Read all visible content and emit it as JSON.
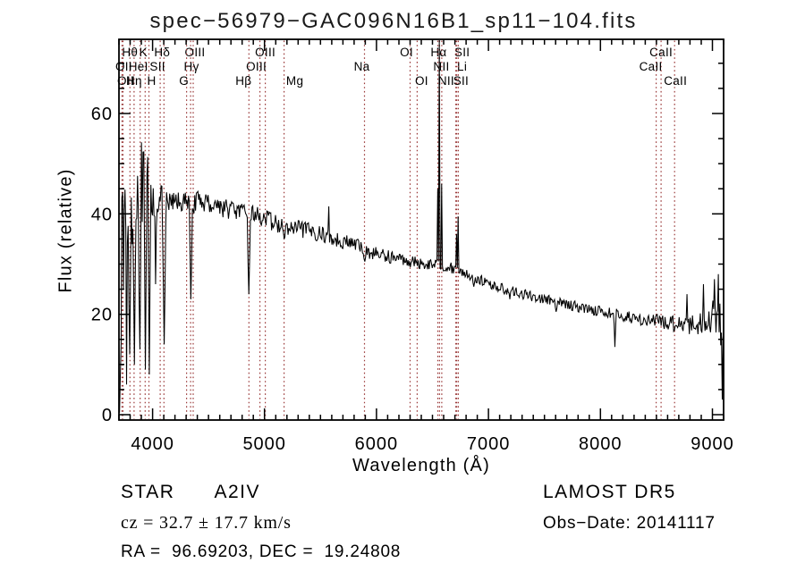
{
  "title": "spec−56979−GAC096N16B1_sp11−104.fits",
  "colors": {
    "marker_line": "#9b3a3a",
    "trace": "#000000",
    "axis": "#000000"
  },
  "annotations": {
    "object_class": "STAR",
    "subclass": "A2IV",
    "cz": "cz = 32.7 ± 17.7 km/s",
    "ra_dec": "RA =  96.69203, DEC =  19.24808",
    "survey": "LAMOST DR5",
    "obs_date": "Obs−Date: 20141117"
  },
  "chart_data": {
    "type": "line",
    "title": "spec−56979−GAC096N16B1_sp11−104.fits",
    "xlabel": "Wavelength (Å)",
    "ylabel": "Flux (relative)",
    "xlim": [
      3700,
      9100
    ],
    "ylim": [
      0,
      75
    ],
    "grid": false,
    "xticks_major": [
      4000,
      5000,
      6000,
      7000,
      8000,
      9000
    ],
    "xtick_minor_step": 100,
    "yticks_major": [
      0,
      20,
      40,
      60
    ],
    "ytick_minor_step": 5,
    "line_markers": [
      {
        "label": "Hθ",
        "wavelength": 3798,
        "row": 1,
        "dx": 0
      },
      {
        "label": "K",
        "wavelength": 3934,
        "row": 1,
        "dx": -2
      },
      {
        "label": "Hδ",
        "wavelength": 4102,
        "row": 1,
        "dx": -2
      },
      {
        "label": "OIII",
        "wavelength": 4363,
        "row": 1,
        "dx": 2
      },
      {
        "label": "OIII",
        "wavelength": 5007,
        "row": 1,
        "dx": 0
      },
      {
        "label": "OI",
        "wavelength": 6300,
        "row": 1,
        "dx": -4
      },
      {
        "label": "Hα",
        "wavelength": 6563,
        "row": 1,
        "dx": -1
      },
      {
        "label": "SII",
        "wavelength": 6716,
        "row": 1,
        "dx": 6
      },
      {
        "label": "CaII",
        "wavelength": 8542,
        "row": 1,
        "dx": 0
      },
      {
        "label": "OII",
        "wavelength": 3727,
        "row": 2,
        "dx": 2
      },
      {
        "label": "HeI",
        "wavelength": 3889,
        "row": 2,
        "dx": -2
      },
      {
        "label": "SII",
        "wavelength": 4068,
        "row": 2,
        "dx": -3
      },
      {
        "label": "Hγ",
        "wavelength": 4340,
        "row": 2,
        "dx": 1
      },
      {
        "label": "OIII",
        "wavelength": 4959,
        "row": 2,
        "dx": -4
      },
      {
        "label": "Na",
        "wavelength": 5893,
        "row": 2,
        "dx": -3
      },
      {
        "label": "NII",
        "wavelength": 6548,
        "row": 2,
        "dx": 4
      },
      {
        "label": "Li",
        "wavelength": 6708,
        "row": 2,
        "dx": 7
      },
      {
        "label": "CaII",
        "wavelength": 8498,
        "row": 2,
        "dx": -6
      },
      {
        "label": "OII",
        "wavelength": 3736,
        "row": 3,
        "dx": 3
      },
      {
        "label": "Hη",
        "wavelength": 3835,
        "row": 3,
        "dx": 0
      },
      {
        "label": "H",
        "wavelength": 3968,
        "row": 3,
        "dx": 3
      },
      {
        "label": "G",
        "wavelength": 4304,
        "row": 3,
        "dx": -3
      },
      {
        "label": "Hβ",
        "wavelength": 4861,
        "row": 3,
        "dx": -6
      },
      {
        "label": "Mg",
        "wavelength": 5175,
        "row": 3,
        "dx": 12
      },
      {
        "label": "OI",
        "wavelength": 6363,
        "row": 3,
        "dx": 5
      },
      {
        "label": "NII",
        "wavelength": 6583,
        "row": 3,
        "dx": 5
      },
      {
        "label": "SII",
        "wavelength": 6731,
        "row": 3,
        "dx": 3
      },
      {
        "label": "CaII",
        "wavelength": 8662,
        "row": 3,
        "dx": 1
      }
    ],
    "spectrum": {
      "sample_step": 7,
      "noise_seed": 1234,
      "continuum": [
        [
          3705,
          0
        ],
        [
          3708,
          14
        ],
        [
          3715,
          24
        ],
        [
          3725,
          30
        ],
        [
          3740,
          34
        ],
        [
          3755,
          44
        ],
        [
          3770,
          40
        ],
        [
          3790,
          42
        ],
        [
          3810,
          44
        ],
        [
          3830,
          45
        ],
        [
          3850,
          45
        ],
        [
          3870,
          46
        ],
        [
          3890,
          46
        ],
        [
          3910,
          45
        ],
        [
          3930,
          45
        ],
        [
          3950,
          44
        ],
        [
          3970,
          44
        ],
        [
          3990,
          44
        ],
        [
          4020,
          44
        ],
        [
          4060,
          43
        ],
        [
          4110,
          42
        ],
        [
          4160,
          42
        ],
        [
          4210,
          42.5
        ],
        [
          4260,
          42.5
        ],
        [
          4310,
          42
        ],
        [
          4360,
          42
        ],
        [
          4410,
          42.5
        ],
        [
          4460,
          42.5
        ],
        [
          4510,
          42
        ],
        [
          4560,
          42
        ],
        [
          4610,
          41.5
        ],
        [
          4660,
          41
        ],
        [
          4710,
          41
        ],
        [
          4760,
          40.5
        ],
        [
          4810,
          40
        ],
        [
          4860,
          40
        ],
        [
          4910,
          40
        ],
        [
          4960,
          39.5
        ],
        [
          5010,
          39
        ],
        [
          5060,
          38.5
        ],
        [
          5110,
          38
        ],
        [
          5160,
          37.5
        ],
        [
          5210,
          37
        ],
        [
          5310,
          37
        ],
        [
          5410,
          36.5
        ],
        [
          5510,
          36
        ],
        [
          5610,
          35
        ],
        [
          5710,
          34.5
        ],
        [
          5810,
          34
        ],
        [
          5910,
          32.5
        ],
        [
          6010,
          32
        ],
        [
          6110,
          31.5
        ],
        [
          6210,
          31
        ],
        [
          6310,
          30.5
        ],
        [
          6410,
          30
        ],
        [
          6510,
          30
        ],
        [
          6610,
          29.5
        ],
        [
          6710,
          29
        ],
        [
          6810,
          28
        ],
        [
          6910,
          27
        ],
        [
          7010,
          26
        ],
        [
          7110,
          25.2
        ],
        [
          7210,
          24.6
        ],
        [
          7310,
          24
        ],
        [
          7410,
          23.4
        ],
        [
          7510,
          23
        ],
        [
          7610,
          22.4
        ],
        [
          7710,
          22
        ],
        [
          7810,
          21.4
        ],
        [
          7910,
          21
        ],
        [
          8010,
          20.6
        ],
        [
          8110,
          20.2
        ],
        [
          8210,
          19.6
        ],
        [
          8310,
          19.2
        ],
        [
          8410,
          18.8
        ],
        [
          8510,
          18.6
        ],
        [
          8610,
          18.2
        ],
        [
          8710,
          18.4
        ],
        [
          8810,
          17.8
        ],
        [
          8910,
          18.5
        ],
        [
          9010,
          19.5
        ],
        [
          9060,
          20
        ],
        [
          9095,
          15
        ]
      ],
      "noise_nodes": [
        [
          3705,
          14
        ],
        [
          3760,
          12
        ],
        [
          3850,
          10
        ],
        [
          3950,
          8
        ],
        [
          4050,
          3.5
        ],
        [
          4150,
          2.2
        ],
        [
          4600,
          2.0
        ],
        [
          5000,
          1.8
        ],
        [
          5500,
          1.6
        ],
        [
          6000,
          1.4
        ],
        [
          6500,
          1.1
        ],
        [
          7000,
          1.0
        ],
        [
          7600,
          1.0
        ],
        [
          8200,
          1.1
        ],
        [
          8600,
          1.6
        ],
        [
          8900,
          2.4
        ],
        [
          9000,
          3.2
        ],
        [
          9095,
          6
        ]
      ],
      "features": [
        {
          "wavelength": 3770,
          "flux": 6,
          "halfwidth": 8
        },
        {
          "wavelength": 3798,
          "flux": 12,
          "halfwidth": 14
        },
        {
          "wavelength": 3835,
          "flux": 10,
          "halfwidth": 14
        },
        {
          "wavelength": 3889,
          "flux": 13,
          "halfwidth": 14
        },
        {
          "wavelength": 3934,
          "flux": 9,
          "halfwidth": 12
        },
        {
          "wavelength": 3970,
          "flux": 8,
          "halfwidth": 12
        },
        {
          "wavelength": 4025,
          "flux": 26,
          "halfwidth": 8
        },
        {
          "wavelength": 4102,
          "flux": 14,
          "halfwidth": 16
        },
        {
          "wavelength": 4340,
          "flux": 23,
          "halfwidth": 14
        },
        {
          "wavelength": 4861,
          "flux": 24,
          "halfwidth": 14
        },
        {
          "wavelength": 5175,
          "flux": 35,
          "halfwidth": 16
        },
        {
          "wavelength": 5577,
          "flux": 41.5,
          "halfwidth": 6
        },
        {
          "wavelength": 5893,
          "flux": 30.5,
          "halfwidth": 12
        },
        {
          "wavelength": 6548,
          "flux": 45,
          "halfwidth": 5
        },
        {
          "wavelength": 6563,
          "flux": 74.6,
          "halfwidth": 5
        },
        {
          "wavelength": 6583,
          "flux": 46,
          "halfwidth": 5
        },
        {
          "wavelength": 6716,
          "flux": 36,
          "halfwidth": 5
        },
        {
          "wavelength": 6731,
          "flux": 39.5,
          "halfwidth": 5
        },
        {
          "wavelength": 6867,
          "flux": 25.5,
          "halfwidth": 14
        },
        {
          "wavelength": 7190,
          "flux": 23,
          "halfwidth": 10
        },
        {
          "wavelength": 7605,
          "flux": 20.5,
          "halfwidth": 16
        },
        {
          "wavelength": 8130,
          "flux": 13.5,
          "halfwidth": 10
        },
        {
          "wavelength": 8770,
          "flux": 24,
          "halfwidth": 5
        },
        {
          "wavelength": 8920,
          "flux": 26,
          "halfwidth": 5
        },
        {
          "wavelength": 9018,
          "flux": 27,
          "halfwidth": 5
        },
        {
          "wavelength": 9055,
          "flux": 28,
          "halfwidth": 5
        },
        {
          "wavelength": 9085,
          "flux": 3,
          "halfwidth": 8
        }
      ]
    }
  }
}
